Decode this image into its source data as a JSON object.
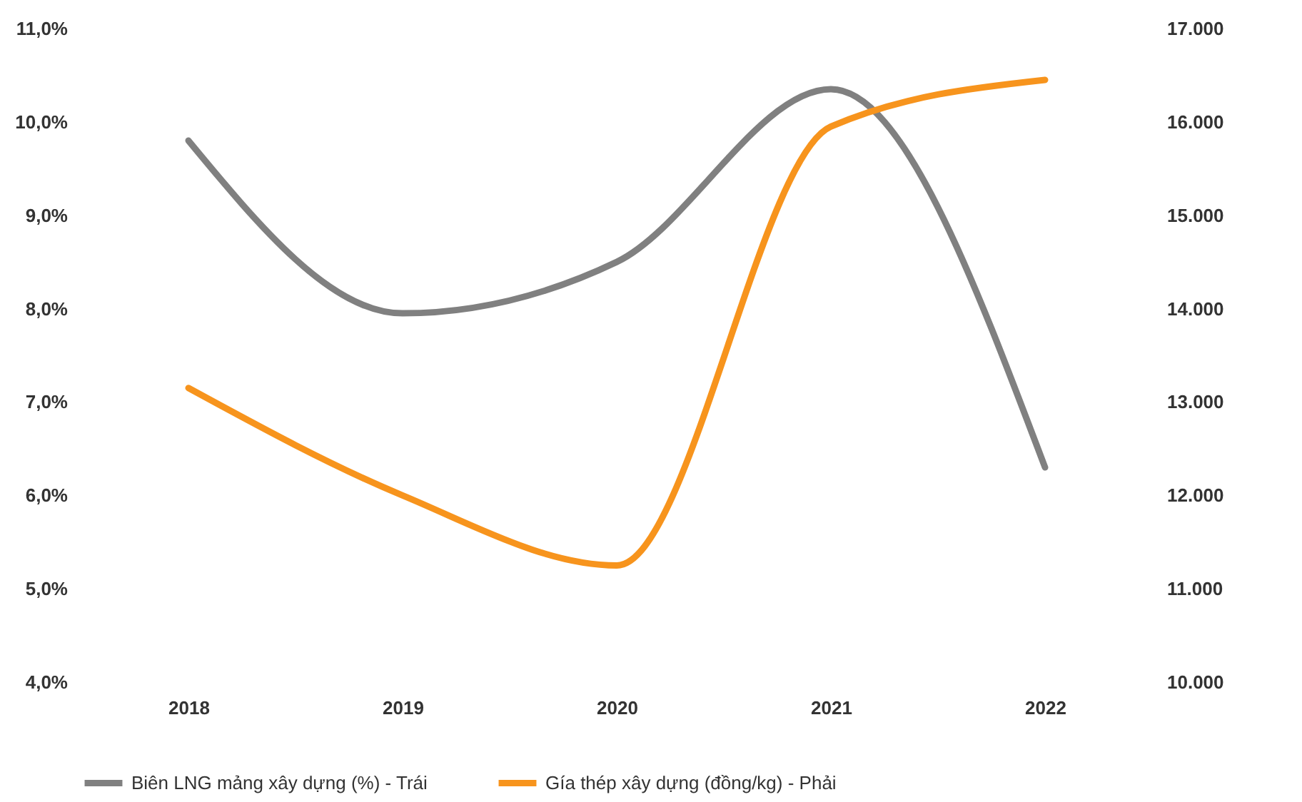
{
  "chart_data": {
    "type": "line",
    "categories": [
      "2018",
      "2019",
      "2020",
      "2021",
      "2022"
    ],
    "series": [
      {
        "name": "Biên LNG mảng xây dựng (%) - Trái",
        "color": "#808080",
        "values": [
          9.8,
          7.95,
          8.5,
          10.35,
          6.3
        ]
      },
      {
        "name": "Gía thép xây dựng (đồng/kg) - Phải",
        "color": "#f7941d",
        "values": [
          13150,
          12000,
          11250,
          15950,
          16450
        ],
        "axis": "y2"
      }
    ],
    "ylim": [
      4,
      11
    ],
    "yticks": [
      {
        "value": 4,
        "label": "4,0%"
      },
      {
        "value": 5,
        "label": "5,0%"
      },
      {
        "value": 6,
        "label": "6,0%"
      },
      {
        "value": 7,
        "label": "7,0%"
      },
      {
        "value": 8,
        "label": "8,0%"
      },
      {
        "value": 9,
        "label": "9,0%"
      },
      {
        "value": 10,
        "label": "10,0%"
      },
      {
        "value": 11,
        "label": "11,0%"
      }
    ],
    "y2lim": [
      10000,
      17000
    ],
    "y2ticks": [
      {
        "value": 10000,
        "label": "10.000"
      },
      {
        "value": 11000,
        "label": "11.000"
      },
      {
        "value": 12000,
        "label": "12.000"
      },
      {
        "value": 13000,
        "label": "13.000"
      },
      {
        "value": 14000,
        "label": "14.000"
      },
      {
        "value": 15000,
        "label": "15.000"
      },
      {
        "value": 16000,
        "label": "16.000"
      },
      {
        "value": 17000,
        "label": "17.000"
      }
    ],
    "grid": false,
    "legend": "bottom",
    "marker": "none",
    "line_style": "solid"
  }
}
